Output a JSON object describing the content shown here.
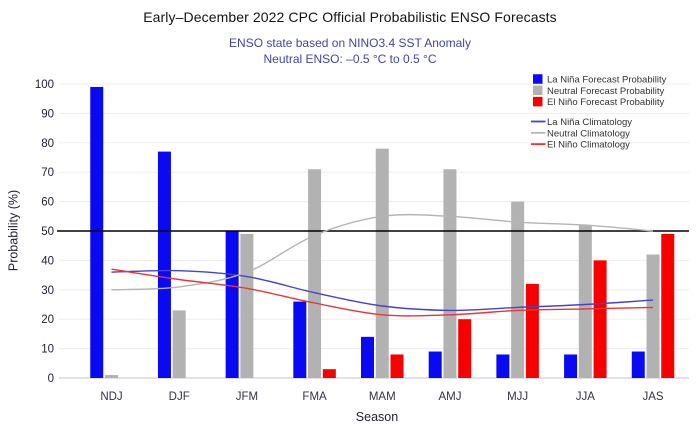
{
  "header": {
    "title": "Early–December 2022 CPC Official Probabilistic ENSO Forecasts",
    "subtitle1": "ENSO state based on NINO3.4 SST Anomaly",
    "subtitle2": "Neutral ENSO: –0.5 °C to 0.5 °C",
    "subtitle_color": "#4343a8"
  },
  "chart_data": {
    "type": "bar+line",
    "title": "Early–December 2022 CPC Official Probabilistic ENSO Forecasts",
    "categories": [
      "NDJ",
      "DJF",
      "JFM",
      "FMA",
      "MAM",
      "AMJ",
      "MJJ",
      "JJA",
      "JAS"
    ],
    "bar_series": [
      {
        "name": "La Niña Forecast Probability",
        "color": "#0909f2",
        "values": [
          99,
          77,
          50,
          26,
          14,
          9,
          8,
          8,
          9
        ]
      },
      {
        "name": "Neutral Forecast Probability",
        "color": "#b2b2b2",
        "values": [
          1,
          23,
          49,
          71,
          78,
          71,
          60,
          52,
          42
        ]
      },
      {
        "name": "El Niño Forecast Probability",
        "color": "#f70000",
        "values": [
          0,
          0,
          0,
          3,
          8,
          20,
          32,
          40,
          49
        ]
      }
    ],
    "line_series": [
      {
        "name": "La Niña Climatology",
        "color": "#4343cf",
        "values": [
          36,
          36.5,
          34.5,
          29,
          24.5,
          23,
          24,
          25,
          26.5
        ]
      },
      {
        "name": "Neutral Climatology",
        "color": "#b4b4b4",
        "values": [
          30,
          31,
          36,
          48.5,
          55,
          55,
          53,
          52,
          50
        ]
      },
      {
        "name": "El Niño Climatology",
        "color": "#ee3333",
        "values": [
          37,
          33.5,
          30.5,
          25.5,
          21.5,
          21.5,
          23,
          23.5,
          24
        ]
      }
    ],
    "xlabel": "Season",
    "ylabel": "Probability (%)",
    "ylim": [
      0,
      100
    ],
    "ytick_step": 10,
    "reference_line": {
      "value": 50,
      "color": "#000000"
    },
    "grid": true,
    "legend_position": "top-right",
    "axis_tick_color": "#222233",
    "category_label_color": "#333344",
    "gridline_color": "#ededed",
    "baseline_color": "#c3c3de"
  }
}
